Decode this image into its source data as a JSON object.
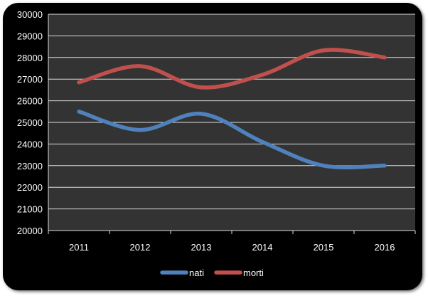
{
  "chart_data": {
    "type": "line",
    "categories": [
      "2011",
      "2012",
      "2013",
      "2014",
      "2015",
      "2016"
    ],
    "series": [
      {
        "name": "nati",
        "values": [
          25500,
          24650,
          25400,
          24100,
          23000,
          23000
        ],
        "color": "#4f81bd"
      },
      {
        "name": "morti",
        "values": [
          26850,
          27600,
          26620,
          27200,
          28330,
          28000
        ],
        "color": "#c0504d"
      }
    ],
    "ylim": [
      20000,
      30000
    ],
    "y_ticks": [
      "20000",
      "21000",
      "22000",
      "23000",
      "24000",
      "25000",
      "26000",
      "27000",
      "28000",
      "29000",
      "30000"
    ],
    "smooth": true,
    "grid": true,
    "legend": "bottom",
    "plot_background": "#333333",
    "frame_background": "#000000",
    "gridline_color": "#dcdcdc"
  }
}
